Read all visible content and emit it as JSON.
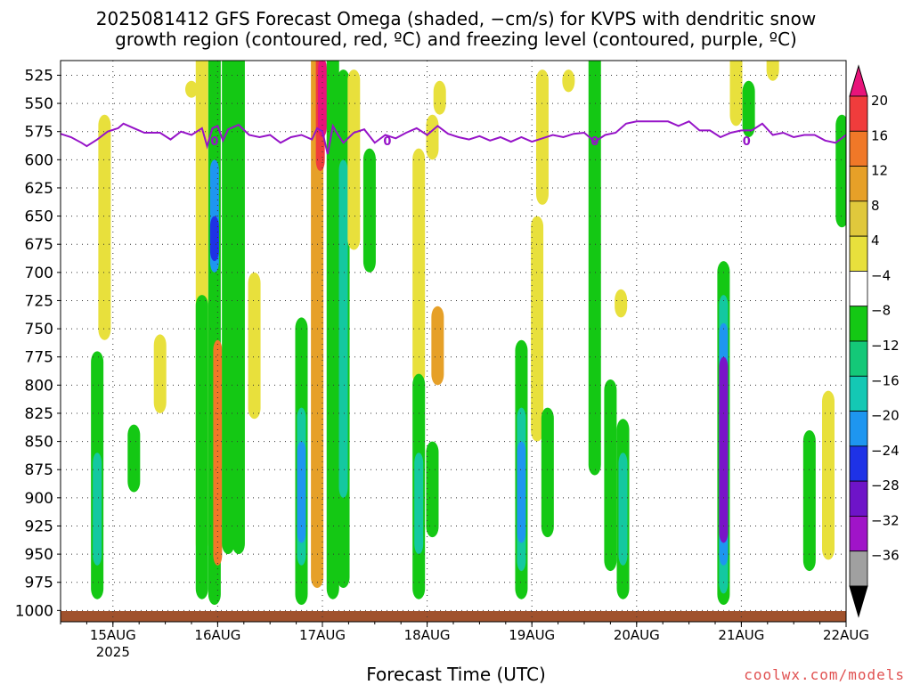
{
  "title_line1": "2025081412 GFS Forecast Omega (shaded, −cm/s) for KVPS with dendritic snow",
  "title_line2": "growth region (contoured, red, ºC) and freezing level (contoured, purple, ºC)",
  "credit": "coolwx.com/models",
  "chart_data": {
    "type": "heatmap",
    "xlabel": "Forecast Time (UTC)",
    "ylabel": "",
    "y_axis": {
      "reversed": true,
      "range": [
        1010,
        512
      ],
      "ticks": [
        525,
        550,
        575,
        600,
        625,
        650,
        675,
        700,
        725,
        750,
        775,
        800,
        825,
        850,
        875,
        900,
        925,
        950,
        975,
        1000
      ]
    },
    "x_axis": {
      "range": [
        14.5,
        22.0
      ],
      "ticks": [
        {
          "value": 15,
          "label": "15AUG",
          "sublabel": "2025"
        },
        {
          "value": 16,
          "label": "16AUG",
          "sublabel": ""
        },
        {
          "value": 17,
          "label": "17AUG",
          "sublabel": ""
        },
        {
          "value": 18,
          "label": "18AUG",
          "sublabel": ""
        },
        {
          "value": 19,
          "label": "19AUG",
          "sublabel": ""
        },
        {
          "value": 20,
          "label": "20AUG",
          "sublabel": ""
        },
        {
          "value": 21,
          "label": "21AUG",
          "sublabel": ""
        },
        {
          "value": 22,
          "label": "22AUG",
          "sublabel": ""
        }
      ]
    },
    "grid": true,
    "colorbar": {
      "labels": [
        "20",
        "16",
        "12",
        "8",
        "4",
        "−4",
        "−8",
        "−12",
        "−16",
        "−20",
        "−24",
        "−28",
        "−32",
        "−36"
      ],
      "colors": [
        "#e8147a",
        "#f03c3c",
        "#f07828",
        "#e6a028",
        "#e0c83c",
        "#e8e03c",
        "#ffffff",
        "#14c814",
        "#14c878",
        "#14c8b4",
        "#1e96f0",
        "#1e32e6",
        "#6e14c8",
        "#a014c8",
        "#a0a0a0",
        "#000000"
      ]
    },
    "omega_features": [
      {
        "x": 14.85,
        "p_top": 770,
        "p_bot": 990,
        "level": -8
      },
      {
        "x": 14.85,
        "p_top": 860,
        "p_bot": 960,
        "level": -12
      },
      {
        "x": 14.92,
        "p_top": 560,
        "p_bot": 760,
        "level": 4
      },
      {
        "x": 15.2,
        "p_top": 835,
        "p_bot": 895,
        "level": -8
      },
      {
        "x": 15.45,
        "p_top": 755,
        "p_bot": 825,
        "level": 4
      },
      {
        "x": 15.75,
        "p_top": 530,
        "p_bot": 545,
        "level": 4
      },
      {
        "x": 15.85,
        "p_top": 500,
        "p_bot": 950,
        "level": 4
      },
      {
        "x": 15.85,
        "p_top": 720,
        "p_bot": 990,
        "level": -8
      },
      {
        "x": 15.97,
        "p_top": 500,
        "p_bot": 995,
        "level": -8
      },
      {
        "x": 15.97,
        "p_top": 600,
        "p_bot": 700,
        "level": -16
      },
      {
        "x": 15.97,
        "p_top": 650,
        "p_bot": 690,
        "level": -24
      },
      {
        "x": 16.0,
        "p_top": 760,
        "p_bot": 960,
        "level": 12
      },
      {
        "x": 16.1,
        "p_top": 500,
        "p_bot": 950,
        "level": -8
      },
      {
        "x": 16.2,
        "p_top": 500,
        "p_bot": 950,
        "level": -8
      },
      {
        "x": 16.35,
        "p_top": 700,
        "p_bot": 830,
        "level": 4
      },
      {
        "x": 16.8,
        "p_top": 740,
        "p_bot": 995,
        "level": -8
      },
      {
        "x": 16.8,
        "p_top": 820,
        "p_bot": 960,
        "level": -12
      },
      {
        "x": 16.8,
        "p_top": 850,
        "p_bot": 940,
        "level": -20
      },
      {
        "x": 16.95,
        "p_top": 500,
        "p_bot": 980,
        "level": 8
      },
      {
        "x": 16.98,
        "p_top": 500,
        "p_bot": 610,
        "level": 16
      },
      {
        "x": 17.0,
        "p_top": 510,
        "p_bot": 580,
        "level": 20
      },
      {
        "x": 17.1,
        "p_top": 500,
        "p_bot": 990,
        "level": -8
      },
      {
        "x": 17.2,
        "p_top": 520,
        "p_bot": 980,
        "level": -8
      },
      {
        "x": 17.2,
        "p_top": 600,
        "p_bot": 900,
        "level": -12
      },
      {
        "x": 17.3,
        "p_top": 520,
        "p_bot": 680,
        "level": 4
      },
      {
        "x": 17.45,
        "p_top": 590,
        "p_bot": 700,
        "level": -8
      },
      {
        "x": 17.92,
        "p_top": 590,
        "p_bot": 800,
        "level": 4
      },
      {
        "x": 17.92,
        "p_top": 790,
        "p_bot": 990,
        "level": -8
      },
      {
        "x": 17.92,
        "p_top": 860,
        "p_bot": 950,
        "level": -12
      },
      {
        "x": 18.05,
        "p_top": 560,
        "p_bot": 600,
        "level": 4
      },
      {
        "x": 18.1,
        "p_top": 730,
        "p_bot": 800,
        "level": 8
      },
      {
        "x": 18.12,
        "p_top": 530,
        "p_bot": 560,
        "level": 4
      },
      {
        "x": 18.05,
        "p_top": 850,
        "p_bot": 935,
        "level": -8
      },
      {
        "x": 18.9,
        "p_top": 760,
        "p_bot": 990,
        "level": -8
      },
      {
        "x": 18.9,
        "p_top": 820,
        "p_bot": 965,
        "level": -12
      },
      {
        "x": 18.9,
        "p_top": 850,
        "p_bot": 940,
        "level": -20
      },
      {
        "x": 19.05,
        "p_top": 650,
        "p_bot": 850,
        "level": 4
      },
      {
        "x": 19.1,
        "p_top": 520,
        "p_bot": 640,
        "level": 4
      },
      {
        "x": 19.15,
        "p_top": 820,
        "p_bot": 935,
        "level": -8
      },
      {
        "x": 19.35,
        "p_top": 520,
        "p_bot": 540,
        "level": 4
      },
      {
        "x": 19.6,
        "p_top": 500,
        "p_bot": 880,
        "level": -8
      },
      {
        "x": 19.75,
        "p_top": 795,
        "p_bot": 965,
        "level": -8
      },
      {
        "x": 19.87,
        "p_top": 830,
        "p_bot": 990,
        "level": -8
      },
      {
        "x": 19.87,
        "p_top": 860,
        "p_bot": 960,
        "level": -12
      },
      {
        "x": 19.85,
        "p_top": 715,
        "p_bot": 740,
        "level": 4
      },
      {
        "x": 20.83,
        "p_top": 690,
        "p_bot": 995,
        "level": -8
      },
      {
        "x": 20.83,
        "p_top": 720,
        "p_bot": 985,
        "level": -12
      },
      {
        "x": 20.83,
        "p_top": 745,
        "p_bot": 960,
        "level": -20
      },
      {
        "x": 20.83,
        "p_top": 775,
        "p_bot": 940,
        "level": -32
      },
      {
        "x": 20.95,
        "p_top": 500,
        "p_bot": 570,
        "level": 4
      },
      {
        "x": 21.07,
        "p_top": 530,
        "p_bot": 580,
        "level": -8
      },
      {
        "x": 21.3,
        "p_top": 500,
        "p_bot": 530,
        "level": 4
      },
      {
        "x": 21.65,
        "p_top": 840,
        "p_bot": 965,
        "level": -8
      },
      {
        "x": 21.83,
        "p_top": 805,
        "p_bot": 955,
        "level": 4
      },
      {
        "x": 21.96,
        "p_top": 560,
        "p_bot": 660,
        "level": -8
      }
    ],
    "freezing_level": {
      "label": "0",
      "x": [
        14.5,
        14.6,
        14.7,
        14.75,
        14.85,
        14.95,
        15.05,
        15.1,
        15.2,
        15.3,
        15.45,
        15.55,
        15.65,
        15.75,
        15.85,
        15.9,
        15.95,
        16.0,
        16.05,
        16.1,
        16.2,
        16.3,
        16.4,
        16.5,
        16.6,
        16.7,
        16.8,
        16.9,
        16.95,
        17.0,
        17.05,
        17.1,
        17.15,
        17.2,
        17.3,
        17.4,
        17.5,
        17.6,
        17.7,
        17.8,
        17.9,
        18.0,
        18.1,
        18.2,
        18.3,
        18.4,
        18.5,
        18.6,
        18.7,
        18.8,
        18.9,
        19.0,
        19.1,
        19.2,
        19.3,
        19.4,
        19.5,
        19.6,
        19.7,
        19.8,
        19.9,
        20.0,
        20.1,
        20.2,
        20.3,
        20.4,
        20.5,
        20.6,
        20.7,
        20.8,
        20.9,
        21.0,
        21.1,
        21.2,
        21.3,
        21.4,
        21.5,
        21.6,
        21.7,
        21.8,
        21.9,
        22.0
      ],
      "y": [
        577,
        580,
        585,
        588,
        582,
        575,
        572,
        568,
        572,
        576,
        576,
        582,
        575,
        578,
        572,
        588,
        572,
        570,
        583,
        573,
        569,
        578,
        580,
        578,
        585,
        580,
        578,
        582,
        572,
        575,
        595,
        570,
        578,
        585,
        576,
        573,
        585,
        578,
        581,
        576,
        572,
        578,
        570,
        577,
        580,
        582,
        579,
        583,
        580,
        584,
        580,
        584,
        581,
        578,
        580,
        577,
        576,
        584,
        578,
        576,
        568,
        566,
        566,
        566,
        566,
        570,
        566,
        574,
        574,
        580,
        576,
        574,
        574,
        568,
        578,
        576,
        580,
        578,
        578,
        583,
        585,
        578
      ]
    }
  }
}
